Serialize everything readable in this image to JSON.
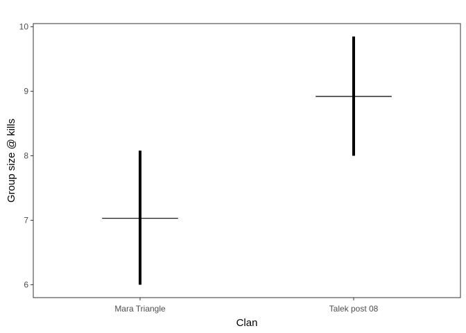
{
  "chart_data": {
    "type": "errorbar",
    "xlabel": "Clan",
    "ylabel": "Group size @ kills",
    "categories": [
      "Mara Triangle",
      "Talek post 08"
    ],
    "ylim": [
      5.8,
      10.05
    ],
    "yticks": [
      6,
      7,
      8,
      9,
      10
    ],
    "series": [
      {
        "values": [
          7.03,
          8.92
        ],
        "lower": [
          6.0,
          8.0
        ],
        "upper": [
          8.08,
          9.85
        ]
      }
    ],
    "grid": false,
    "legend": "none",
    "colors": {
      "range_line": "#000000",
      "mean_mark": "#000000",
      "panel_border": "#333333"
    }
  }
}
